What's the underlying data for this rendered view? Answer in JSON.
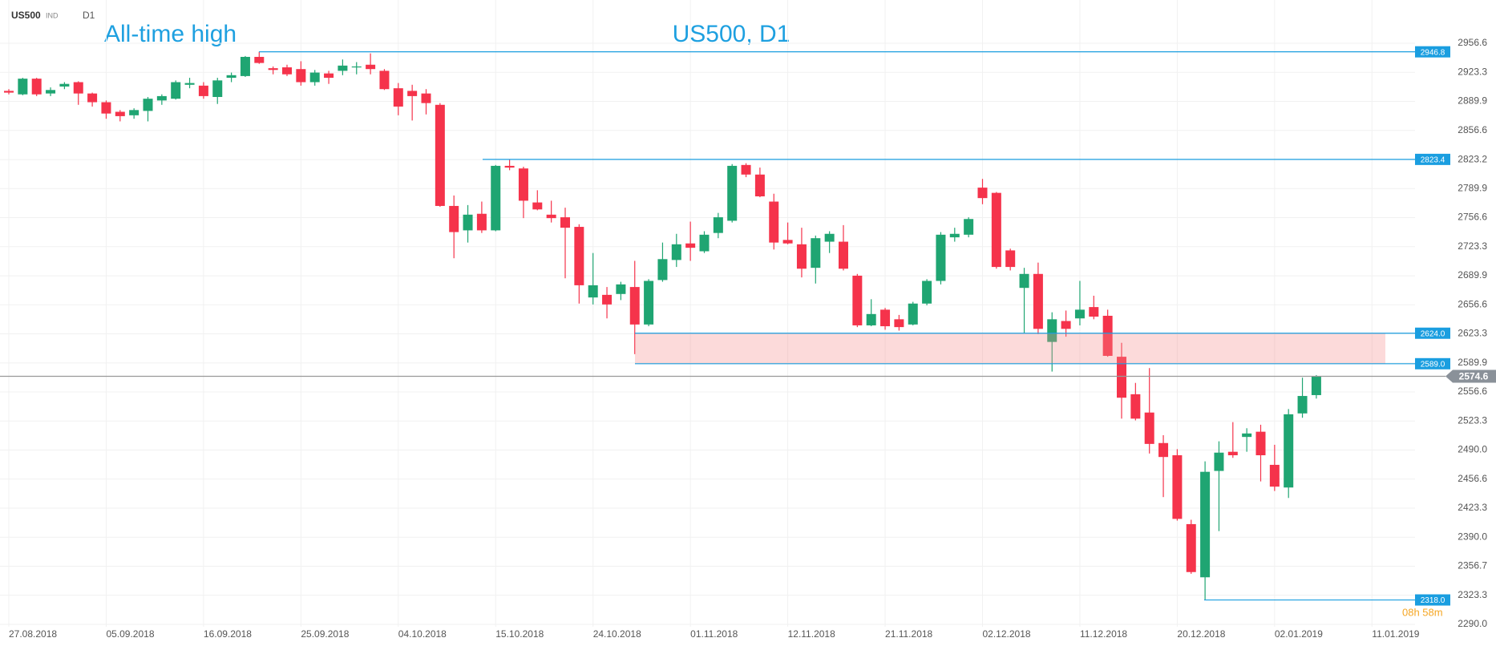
{
  "header": {
    "symbol": "US500",
    "market": "IND",
    "timeframe": "D1"
  },
  "chart_data": {
    "type": "candlestick",
    "title": "US500, D1",
    "annotation": "All-time high",
    "countdown": "08h 58m",
    "up_color": "#1fa572",
    "down_color": "#f5334b",
    "level_color": "#1a9ee0",
    "categories": [
      "27.08.2018",
      null,
      null,
      null,
      null,
      null,
      null,
      "05.09.2018",
      null,
      null,
      null,
      null,
      null,
      null,
      "16.09.2018",
      null,
      null,
      null,
      null,
      null,
      null,
      "25.09.2018",
      null,
      null,
      null,
      null,
      null,
      null,
      "04.10.2018",
      null,
      null,
      null,
      null,
      null,
      null,
      "15.10.2018",
      null,
      null,
      null,
      null,
      null,
      null,
      "24.10.2018",
      null,
      null,
      null,
      null,
      null,
      null,
      "01.11.2018",
      null,
      null,
      null,
      null,
      null,
      null,
      "12.11.2018",
      null,
      null,
      null,
      null,
      null,
      null,
      "21.11.2018",
      null,
      null,
      null,
      null,
      null,
      null,
      "02.12.2018",
      null,
      null,
      null,
      null,
      null,
      null,
      "11.12.2018",
      null,
      null,
      null,
      null,
      null,
      null,
      "20.12.2018",
      null,
      null,
      null,
      null,
      null,
      null,
      "02.01.2019",
      null,
      null,
      null,
      null,
      null,
      null,
      "11.01.2019"
    ],
    "open": [
      2902,
      2898,
      2916,
      2899,
      2907,
      2912,
      2899,
      2889,
      2878,
      2874,
      2879,
      2891,
      2893,
      2909,
      2908,
      2895,
      2917,
      2919,
      2941,
      2928,
      2929,
      2927,
      2912,
      2922,
      2925,
      2929,
      2932,
      2925,
      2905,
      2902,
      2899,
      2886,
      2770,
      2742,
      2761,
      2742,
      2816,
      2813,
      2774,
      2760,
      2757,
      2746,
      2665,
      2668,
      2669,
      2677,
      2634,
      2685,
      2708,
      2727,
      2718,
      2739,
      2753,
      2817,
      2806,
      2775,
      2731,
      2726,
      2699,
      2729,
      2729,
      2690,
      2633,
      2651,
      2640,
      2634,
      2658,
      2684,
      2734,
      2737,
      2791,
      2785,
      2719,
      2676,
      2692,
      2614,
      2638,
      2641,
      2654,
      2644,
      2597,
      2554,
      2533,
      2498,
      2484,
      2405,
      2344,
      2466,
      2488,
      2505,
      2511,
      2473,
      2447,
      2532,
      2553,
      null,
      null,
      null,
      null
    ],
    "high": [
      2904,
      2917,
      2917,
      2906,
      2912,
      2913,
      2900,
      2891,
      2880,
      2882,
      2895,
      2898,
      2914,
      2917,
      2912,
      2917,
      2923,
      2942,
      2946.8,
      2930,
      2932,
      2936,
      2926,
      2925,
      2938,
      2935,
      2945,
      2927,
      2911,
      2909,
      2904,
      2888,
      2782,
      2771,
      2775,
      2817,
      2823.4,
      2815,
      2788,
      2776,
      2768,
      2749,
      2716,
      2677,
      2683,
      2707,
      2686,
      2728,
      2738,
      2752,
      2741,
      2762,
      2818,
      2819,
      2814,
      2784,
      2751,
      2745,
      2736,
      2741,
      2748,
      2692,
      2663,
      2653,
      2645,
      2660,
      2686,
      2740,
      2745,
      2757,
      2801,
      2786,
      2721,
      2699,
      2705,
      2648,
      2650,
      2684,
      2667,
      2651,
      2613,
      2567,
      2584,
      2507,
      2491,
      2410,
      2477,
      2500,
      2522,
      2515,
      2519,
      2496,
      2537,
      2573,
      2576,
      null,
      null,
      null,
      null
    ],
    "low": [
      2898,
      2897,
      2896,
      2896,
      2904,
      2886,
      2884,
      2870,
      2867,
      2870,
      2867,
      2886,
      2892,
      2905,
      2893,
      2887,
      2912,
      2918,
      2933,
      2921,
      2919,
      2908,
      2908,
      2910,
      2920,
      2921,
      2921,
      2903,
      2874,
      2868,
      2875,
      2769,
      2710,
      2728,
      2739,
      2741,
      2811,
      2756,
      2765,
      2751,
      2687,
      2658,
      2657,
      2641,
      2662,
      2600,
      2632,
      2683,
      2700,
      2707,
      2716,
      2733,
      2751,
      2803,
      2780,
      2720,
      2726,
      2688,
      2681,
      2716,
      2696,
      2631,
      2632,
      2628,
      2627,
      2633,
      2656,
      2680,
      2729,
      2734,
      2772,
      2698,
      2696,
      2624,
      2623,
      2580,
      2620,
      2633,
      2640,
      2597,
      2526,
      2524,
      2486,
      2436,
      2409,
      2348,
      2318,
      2397,
      2481,
      2488,
      2454,
      2443,
      2435,
      2527,
      2549,
      null,
      null,
      null,
      null
    ],
    "close": [
      2900,
      2916,
      2898,
      2903,
      2910,
      2899,
      2889,
      2876,
      2873,
      2880,
      2893,
      2896,
      2912,
      2911,
      2896,
      2914,
      2920,
      2941,
      2934,
      2926,
      2921,
      2912,
      2923,
      2917,
      2931,
      2930,
      2927,
      2904,
      2884,
      2896,
      2888,
      2770,
      2740,
      2760,
      2742,
      2816,
      2814,
      2776,
      2766,
      2756,
      2745,
      2679,
      2679,
      2657,
      2680,
      2634,
      2684,
      2709,
      2726,
      2722,
      2737,
      2757,
      2816,
      2806,
      2781,
      2728,
      2727,
      2698,
      2733,
      2738,
      2698,
      2633,
      2646,
      2632,
      2631,
      2658,
      2684,
      2737,
      2738,
      2755,
      2779,
      2700,
      2700,
      2692,
      2629,
      2640,
      2629,
      2651,
      2643,
      2598,
      2550,
      2526,
      2497,
      2482,
      2411,
      2350,
      2465,
      2487,
      2484,
      2509,
      2484,
      2448,
      2531,
      2552,
      2575,
      null,
      null,
      null,
      null
    ],
    "levels": [
      2946.8,
      2823.4,
      {
        "value": 2624.0,
        "label": "2624.0"
      },
      {
        "value": 2589.0,
        "label": "2589.0"
      },
      {
        "value": 2318.0,
        "label": "2318.0"
      }
    ],
    "last": 2574.6,
    "ylim": [
      2290.0,
      2956.6
    ],
    "yticks": [
      {
        "value": 2290.0,
        "label": "2290.0"
      },
      2323.3,
      2356.7,
      {
        "value": 2390.0,
        "label": "2390.0"
      },
      2423.3,
      2456.6,
      {
        "value": 2490.0,
        "label": "2490.0"
      },
      2523.3,
      2556.6,
      2589.9,
      2623.3,
      2656.6,
      2689.9,
      2723.3,
      2756.6,
      2789.9,
      2823.2,
      2856.6,
      2889.9,
      2923.3,
      2956.6
    ],
    "grid": true
  }
}
